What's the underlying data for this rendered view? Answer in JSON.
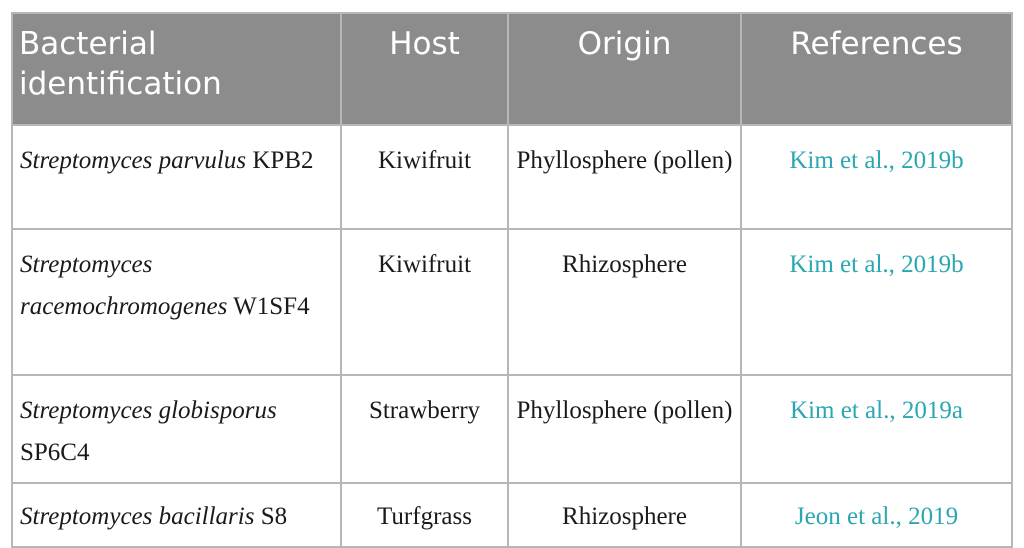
{
  "table": {
    "headers": [
      "Bacterial identification",
      "Host",
      "Origin",
      "References"
    ],
    "rows": [
      {
        "species": "Streptomyces parvulus",
        "strain": "KPB2",
        "host": "Kiwifruit",
        "origin": "Phyllosphere (pollen)",
        "reference": "Kim et al., 2019b"
      },
      {
        "species": "Streptomyces racemochromogenes",
        "strain": "W1SF4",
        "host": "Kiwifruit",
        "origin": "Rhizosphere",
        "reference": "Kim et al., 2019b"
      },
      {
        "species": "Streptomyces globisporus",
        "strain": "SP6C4",
        "host": "Strawberry",
        "origin": "Phyllosphere (pollen)",
        "reference": "Kim et al., 2019a"
      },
      {
        "species": "Streptomyces bacillaris",
        "strain": "S8",
        "host": "Turfgrass",
        "origin": "Rhizosphere",
        "reference": "Jeon et al., 2019"
      }
    ]
  },
  "colors": {
    "header_bg": "#8c8c8c",
    "header_text": "#ffffff",
    "border": "#b7b7b7",
    "reference_link": "#2aa7b1"
  }
}
